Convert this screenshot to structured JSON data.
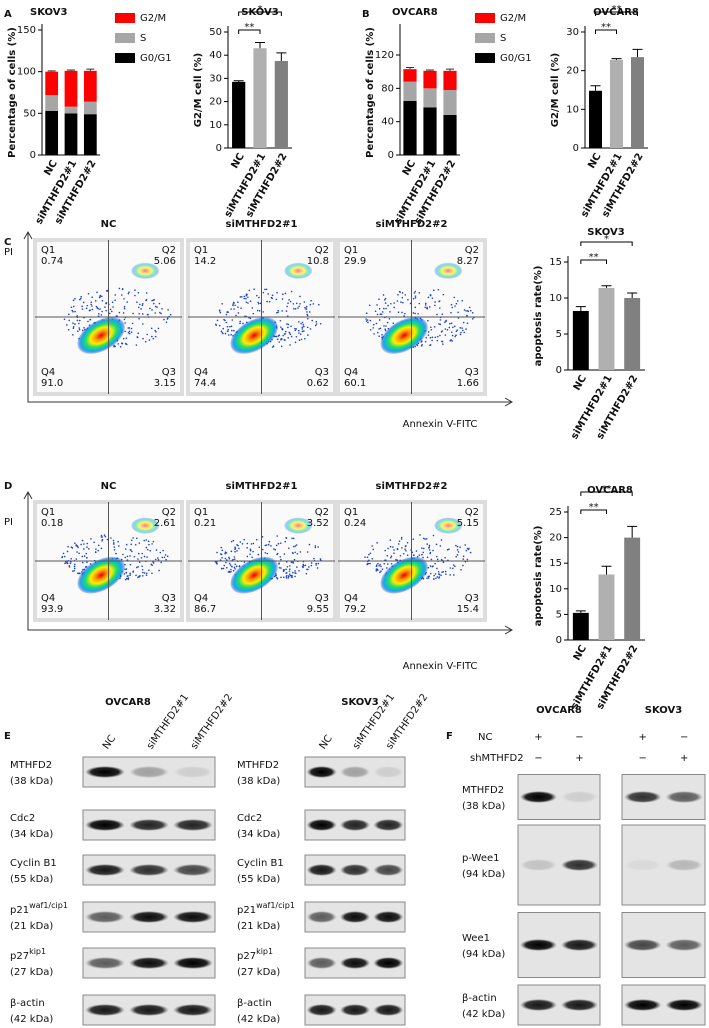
{
  "panel_labels": [
    "A",
    "B",
    "C",
    "D",
    "E",
    "F"
  ],
  "chart_data": [
    {
      "type": "stacked_bar",
      "title": "SKOV3",
      "y_label": "Percentage of cells (%)",
      "categories": [
        "NC",
        "siMTHFD2#1",
        "siMTHFD2#2"
      ],
      "series": [
        {
          "name": "G0/G1",
          "color": "#000000",
          "values": [
            53,
            50,
            49
          ],
          "errors": [
            1,
            2,
            2
          ]
        },
        {
          "name": "S",
          "color": "#a6a6a6",
          "values": [
            19,
            8,
            15
          ],
          "errors": [
            1,
            1,
            1
          ]
        },
        {
          "name": "G2/M",
          "color": "#ff0000",
          "values": [
            28,
            43,
            37
          ],
          "errors": [
            1,
            1,
            2
          ]
        }
      ],
      "ylim": [
        0,
        150
      ],
      "yticks": [
        0,
        50,
        100,
        150
      ]
    },
    {
      "type": "bar",
      "title": "SKOV3",
      "y_label": "G2/M cell (%)",
      "categories": [
        "NC",
        "siMTHFD2#1",
        "siMTHFD2#2"
      ],
      "values": [
        28.5,
        43,
        37.5
      ],
      "errors": [
        0.5,
        2.5,
        3.5
      ],
      "colors": [
        "#000000",
        "#b0b0b0",
        "#808080"
      ],
      "annotations": [
        "**",
        "*"
      ],
      "ylim": [
        0,
        50
      ],
      "yticks": [
        0,
        10,
        20,
        30,
        40,
        50
      ]
    },
    {
      "type": "stacked_bar",
      "title": "OVCAR8",
      "y_label": "Percentage of cells (%)",
      "categories": [
        "NC",
        "siMTHFD2#1",
        "siMTHFD2#2"
      ],
      "series": [
        {
          "name": "G0/G1",
          "color": "#000000",
          "values": [
            65,
            57,
            48
          ],
          "errors": [
            1,
            2,
            1
          ]
        },
        {
          "name": "S",
          "color": "#a6a6a6",
          "values": [
            23,
            23,
            30
          ],
          "errors": [
            1,
            1,
            1
          ]
        },
        {
          "name": "G2/M",
          "color": "#ff0000",
          "values": [
            15,
            21,
            23
          ],
          "errors": [
            2,
            1,
            2
          ]
        }
      ],
      "ylim": [
        0,
        150
      ],
      "yticks": [
        0,
        40,
        80,
        120
      ]
    },
    {
      "type": "bar",
      "title": "OVCAR8",
      "y_label": "G2/M cell (%)",
      "categories": [
        "NC",
        "siMTHFD2#1",
        "siMTHFD2#2"
      ],
      "values": [
        14.8,
        22.8,
        23.5
      ],
      "errors": [
        1.3,
        0.3,
        2
      ],
      "colors": [
        "#000000",
        "#b0b0b0",
        "#808080"
      ],
      "annotations": [
        "**",
        "**"
      ],
      "ylim": [
        0,
        30
      ],
      "yticks": [
        0,
        10,
        20,
        30
      ]
    },
    {
      "type": "bar",
      "title": "SKOV3",
      "y_label": "apoptosis rate(%)",
      "categories": [
        "NC",
        "siMTHFD2#1",
        "siMTHFD2#2"
      ],
      "values": [
        8.2,
        11.4,
        10
      ],
      "errors": [
        0.6,
        0.3,
        0.7
      ],
      "colors": [
        "#000000",
        "#b0b0b0",
        "#808080"
      ],
      "annotations": [
        "**",
        "*"
      ],
      "ylim": [
        0,
        15
      ],
      "yticks": [
        0,
        5,
        10,
        15
      ]
    },
    {
      "type": "bar",
      "title": "OVCAR8",
      "y_label": "apoptosis rate(%)",
      "categories": [
        "NC",
        "siMTHFD2#1",
        "siMTHFD2#2"
      ],
      "values": [
        5.3,
        12.8,
        20
      ],
      "errors": [
        0.4,
        1.6,
        2.2
      ],
      "colors": [
        "#000000",
        "#b0b0b0",
        "#808080"
      ],
      "annotations": [
        "**",
        "**"
      ],
      "ylim": [
        0,
        25
      ],
      "yticks": [
        0,
        5,
        10,
        15,
        20,
        25
      ]
    }
  ],
  "flow": [
    {
      "y_label": "PI",
      "x_label": "Annexin V-FITC",
      "plots": [
        {
          "title": "NC",
          "quadrants": [
            {
              "name": "Q1",
              "value": "0.74"
            },
            {
              "name": "Q2",
              "value": "5.06"
            },
            {
              "name": "Q3",
              "value": "3.15"
            },
            {
              "name": "Q4",
              "value": "91.0"
            }
          ]
        },
        {
          "title": "siMTHFD2#1",
          "quadrants": [
            {
              "name": "Q1",
              "value": "14.2"
            },
            {
              "name": "Q2",
              "value": "10.8"
            },
            {
              "name": "Q3",
              "value": "0.62"
            },
            {
              "name": "Q4",
              "value": "74.4"
            }
          ]
        },
        {
          "title": "siMTHFD2#2",
          "quadrants": [
            {
              "name": "Q1",
              "value": "29.9"
            },
            {
              "name": "Q2",
              "value": "8.27"
            },
            {
              "name": "Q3",
              "value": "1.66"
            },
            {
              "name": "Q4",
              "value": "60.1"
            }
          ]
        }
      ]
    },
    {
      "y_label": "PI",
      "x_label": "Annexin V-FITC",
      "plots": [
        {
          "title": "NC",
          "quadrants": [
            {
              "name": "Q1",
              "value": "0.18"
            },
            {
              "name": "Q2",
              "value": "2.61"
            },
            {
              "name": "Q3",
              "value": "3.32"
            },
            {
              "name": "Q4",
              "value": "93.9"
            }
          ]
        },
        {
          "title": "siMTHFD2#1",
          "quadrants": [
            {
              "name": "Q1",
              "value": "0.21"
            },
            {
              "name": "Q2",
              "value": "3.52"
            },
            {
              "name": "Q3",
              "value": "9.55"
            },
            {
              "name": "Q4",
              "value": "86.7"
            }
          ]
        },
        {
          "title": "siMTHFD2#2",
          "quadrants": [
            {
              "name": "Q1",
              "value": "0.24"
            },
            {
              "name": "Q2",
              "value": "5.15"
            },
            {
              "name": "Q3",
              "value": "15.4"
            },
            {
              "name": "Q4",
              "value": "79.2"
            }
          ]
        }
      ]
    }
  ],
  "blots_e": {
    "groups": [
      {
        "title": "OVCAR8",
        "lanes": [
          "NC",
          "siMTHFD2#1",
          "siMTHFD2#2"
        ]
      },
      {
        "title": "SKOV3",
        "lanes": [
          "NC",
          "siMTHFD2#1",
          "siMTHFD2#2"
        ]
      }
    ],
    "rows": [
      {
        "name": "MTHFD2",
        "kda": "(38 kDa)"
      },
      {
        "name": "Cdc2",
        "kda": "(34 kDa)"
      },
      {
        "name": "Cyclin B1",
        "kda": "(55 kDa)"
      },
      {
        "name": "p21",
        "sup": "waf1/cip1",
        "kda": "(21 kDa)"
      },
      {
        "name": "p27",
        "sup": "kip1",
        "kda": "(27 kDa)"
      },
      {
        "name": "β-actin",
        "kda": "(42 kDa)"
      }
    ]
  },
  "blots_f": {
    "conditions": [
      "NC",
      "shMTHFD2"
    ],
    "groups": [
      {
        "title": "OVCAR8",
        "signs": [
          [
            "+",
            "−"
          ],
          [
            "−",
            "+"
          ]
        ]
      },
      {
        "title": "SKOV3",
        "signs": [
          [
            "+",
            "−"
          ],
          [
            "−",
            "+"
          ]
        ]
      }
    ],
    "rows": [
      {
        "name": "MTHFD2",
        "kda": "(38 kDa)"
      },
      {
        "name": "p-Wee1",
        "kda": "(94 kDa)"
      },
      {
        "name": "Wee1",
        "kda": "(94 kDa)"
      },
      {
        "name": "β-actin",
        "kda": "(42 kDa)"
      }
    ]
  }
}
